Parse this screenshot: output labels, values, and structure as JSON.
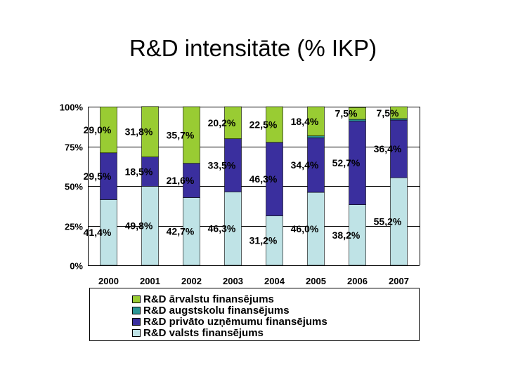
{
  "title": "R&D intensitāte (% IKP)",
  "chart_data": {
    "type": "bar",
    "stacked": true,
    "percent_stacked": true,
    "categories": [
      "2000",
      "2001",
      "2002",
      "2003",
      "2004",
      "2005",
      "2006",
      "2007"
    ],
    "series": [
      {
        "name": "R&D valsts finansējums",
        "color": "#bfe3e6",
        "values": [
          41.4,
          49.8,
          42.7,
          46.3,
          31.2,
          46.0,
          38.2,
          55.2
        ],
        "labels": [
          "41,4%",
          "49,8%",
          "42,7%",
          "46,3%",
          "31,2%",
          "46,0%",
          "38,2%",
          "55,2%"
        ]
      },
      {
        "name": "R&D privāto uzņēmumu finansējums",
        "color": "#3a2f9e",
        "values": [
          29.5,
          18.5,
          21.6,
          33.5,
          46.3,
          34.4,
          52.7,
          36.4
        ],
        "labels": [
          "29,5%",
          "18,5%",
          "21,6%",
          "33,5%",
          "46,3%",
          "34,4%",
          "52,7%",
          "36,4%"
        ]
      },
      {
        "name": "R&D augstskolu finansējums",
        "color": "#2a9696",
        "values": [
          0,
          0,
          0,
          0,
          0,
          1.2,
          1.1,
          0.9
        ],
        "labels": [
          "",
          "",
          "",
          "",
          "",
          "",
          "",
          ""
        ]
      },
      {
        "name": "R&D ārvalstu finansējums",
        "color": "#99cc33",
        "values": [
          29.0,
          31.8,
          35.7,
          20.2,
          22.5,
          18.4,
          7.5,
          7.5
        ],
        "labels": [
          "29,0%",
          "31,8%",
          "35,7%",
          "20,2%",
          "22,5%",
          "18,4%",
          "7,5%",
          "7,5%"
        ]
      }
    ],
    "yticks": [
      "0%",
      "25%",
      "50%",
      "75%",
      "100%"
    ],
    "ylim": [
      0,
      100
    ],
    "grid": true,
    "legend": {
      "position": "bottom",
      "entries": [
        {
          "label": "R&D ārvalstu finansējums",
          "color": "#99cc33"
        },
        {
          "label": "R&D augstskolu finansējums",
          "color": "#2a9696"
        },
        {
          "label": "R&D privāto uzņēmumu finansējums",
          "color": "#3a2f9e"
        },
        {
          "label": "R&D valsts finansējums",
          "color": "#bfe3e6"
        }
      ]
    }
  }
}
